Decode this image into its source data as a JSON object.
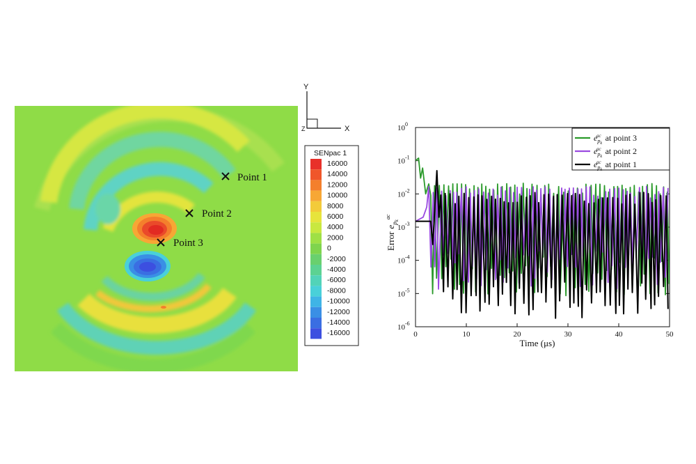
{
  "contour_map": {
    "colorbar_title": "SENpac 1",
    "levels": [
      "16000",
      "14000",
      "12000",
      "10000",
      "8000",
      "6000",
      "4000",
      "2000",
      "0",
      "-2000",
      "-4000",
      "-6000",
      "-8000",
      "-10000",
      "-12000",
      "-14000",
      "-16000"
    ],
    "level_colors": [
      "#e8302a",
      "#f0562a",
      "#f47f2c",
      "#f7a735",
      "#f3cb3a",
      "#e7e43c",
      "#c9e83f",
      "#9fe045",
      "#7fd44d",
      "#69d06e",
      "#5cd292",
      "#52d3b8",
      "#49d0d9",
      "#3fb4e6",
      "#3a8fe5",
      "#3a6ee2",
      "#3c4fe0"
    ],
    "points": [
      {
        "label": "Point 1"
      },
      {
        "label": "Point 2"
      },
      {
        "label": "Point 3"
      }
    ],
    "axes_triad": {
      "y_label": "Y",
      "x_label": "X",
      "z_label": "Z"
    }
  },
  "chart_data": {
    "type": "line",
    "xlabel": "Time (μs)",
    "ylabel": "Error",
    "ylabel_symbol": "e",
    "xlim": [
      0,
      50
    ],
    "ylim": [
      1e-06,
      1
    ],
    "y_scale": "log",
    "x_ticks": [
      "0",
      "10",
      "20",
      "30",
      "40",
      "50"
    ],
    "y_ticks": [
      {
        "base": "10",
        "exp": "0",
        "value": 1
      },
      {
        "base": "10",
        "exp": "-1",
        "value": 0.1
      },
      {
        "base": "10",
        "exp": "-2",
        "value": 0.01
      },
      {
        "base": "10",
        "exp": "-3",
        "value": 0.001
      },
      {
        "base": "10",
        "exp": "-4",
        "value": 0.0001
      },
      {
        "base": "10",
        "exp": "-5",
        "value": 1e-05
      },
      {
        "base": "10",
        "exp": "-6",
        "value": 1e-06
      }
    ],
    "legend_position": "top-right",
    "series": [
      {
        "name": "at point 3",
        "symbol": "e",
        "sup": "ac",
        "sub": "p",
        "subsub": "k",
        "color": "#2a9a2a",
        "baseline": [
          0.1,
          0.02
        ],
        "high": 0.015,
        "low": 5e-05
      },
      {
        "name": "at point 2",
        "symbol": "e",
        "sup": "ac",
        "sub": "p",
        "subsub": "k",
        "color": "#9a4ae0",
        "high": 0.012,
        "low": 8e-05
      },
      {
        "name": "at point 1",
        "symbol": "e",
        "sup": "ac",
        "sub": "p",
        "subsub": "k",
        "color": "#000000",
        "flat_value": 0.0015,
        "high": 0.008,
        "low": 1e-05
      }
    ]
  }
}
